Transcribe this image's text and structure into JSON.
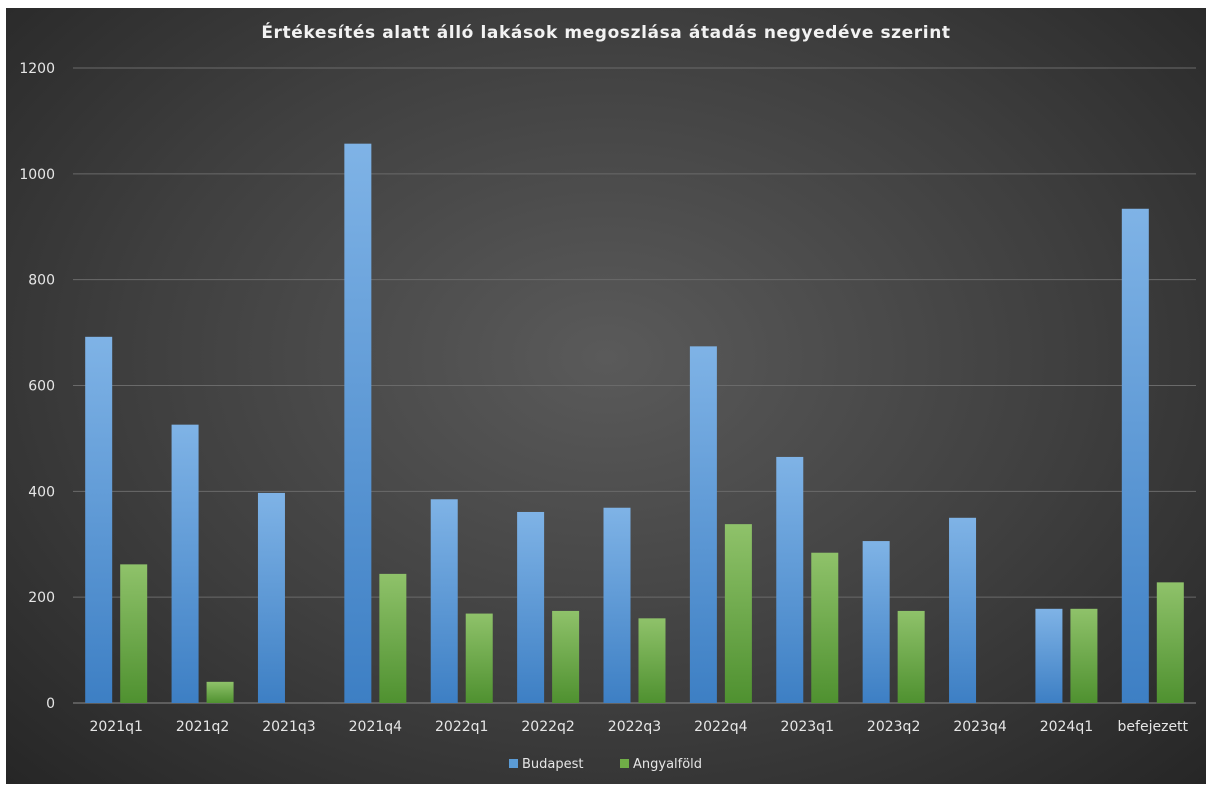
{
  "chart_data": {
    "type": "bar",
    "title": "Értékesítés alatt álló lakások megoszlása átadás negyedéve szerint",
    "xlabel": "",
    "ylabel": "",
    "ylim": [
      0,
      1200
    ],
    "yticks": [
      0,
      200,
      400,
      600,
      800,
      1000,
      1200
    ],
    "grid": true,
    "legend_position": "bottom",
    "categories": [
      "2021q1",
      "2021q2",
      "2021q3",
      "2021q4",
      "2022q1",
      "2022q2",
      "2022q3",
      "2022q4",
      "2023q1",
      "2023q2",
      "2023q4",
      "2024q1",
      "befejezett"
    ],
    "series": [
      {
        "name": "Budapest",
        "color": "#5b9bd5",
        "values": [
          692,
          526,
          397,
          1057,
          385,
          361,
          369,
          674,
          465,
          306,
          350,
          178,
          934
        ]
      },
      {
        "name": "Angyalföld",
        "color": "#70ad47",
        "values": [
          262,
          40,
          0,
          244,
          169,
          174,
          160,
          338,
          284,
          174,
          0,
          178,
          228
        ]
      }
    ]
  }
}
